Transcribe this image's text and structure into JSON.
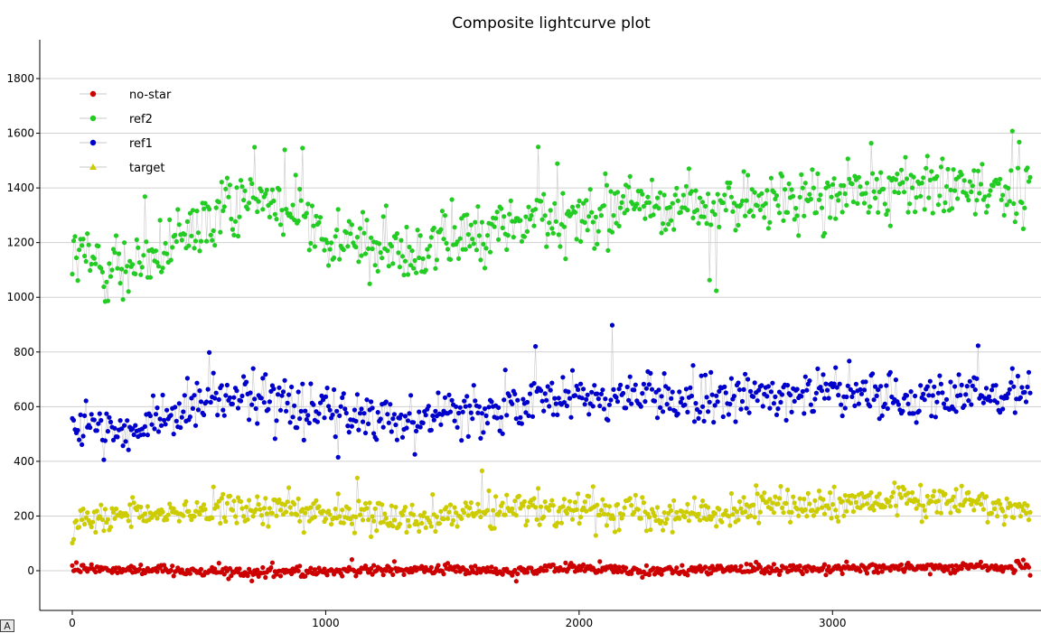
{
  "chart_data": {
    "type": "scatter",
    "title": "Composite lightcurve plot",
    "xlabel": "",
    "ylabel": "",
    "xlim": [
      -40,
      3800
    ],
    "ylim": [
      -150,
      1950
    ],
    "xticks": [
      "0",
      "1000",
      "2000",
      "3000"
    ],
    "yticks": [
      "0",
      "200",
      "400",
      "600",
      "800",
      "1000",
      "1200",
      "1400",
      "1600",
      "1800"
    ],
    "grid": "horizontal",
    "legend_position": "top-left",
    "point_count": 3780,
    "series": [
      {
        "name": "no-star",
        "color": "#cc0000",
        "marker": "circle",
        "x": [
          0,
          250,
          500,
          750,
          1000,
          1250,
          1500,
          1750,
          2000,
          2250,
          2500,
          2750,
          3000,
          3250,
          3500,
          3780
        ],
        "values": [
          10,
          5,
          0,
          -5,
          0,
          0,
          5,
          0,
          10,
          0,
          5,
          5,
          10,
          10,
          15,
          15
        ]
      },
      {
        "name": "ref2",
        "color": "#22cc22",
        "marker": "circle",
        "x": [
          0,
          250,
          500,
          750,
          1000,
          1250,
          1500,
          1750,
          2000,
          2250,
          2500,
          2750,
          3000,
          3250,
          3500,
          3780
        ],
        "values": [
          1150,
          1100,
          1250,
          1400,
          1230,
          1170,
          1200,
          1270,
          1310,
          1350,
          1330,
          1350,
          1360,
          1420,
          1380,
          1400
        ]
      },
      {
        "name": "ref1",
        "color": "#0000cc",
        "marker": "circle",
        "x": [
          0,
          250,
          500,
          750,
          1000,
          1250,
          1500,
          1750,
          2000,
          2250,
          2500,
          2750,
          3000,
          3250,
          3500,
          3780
        ],
        "values": [
          550,
          500,
          620,
          640,
          580,
          560,
          580,
          600,
          640,
          640,
          610,
          650,
          650,
          640,
          630,
          660
        ]
      },
      {
        "name": "target",
        "color": "#cccc00",
        "marker": "triangle",
        "x": [
          0,
          250,
          500,
          750,
          1000,
          1250,
          1500,
          1750,
          2000,
          2250,
          2500,
          2750,
          3000,
          3250,
          3500,
          3780
        ],
        "values": [
          180,
          200,
          220,
          230,
          210,
          200,
          210,
          220,
          230,
          220,
          210,
          240,
          230,
          260,
          250,
          230
        ]
      }
    ]
  },
  "corner_badge": "A",
  "colors": {
    "grid": "#d0d0d0",
    "axis": "#000000",
    "connector": "#c8c8c8"
  }
}
